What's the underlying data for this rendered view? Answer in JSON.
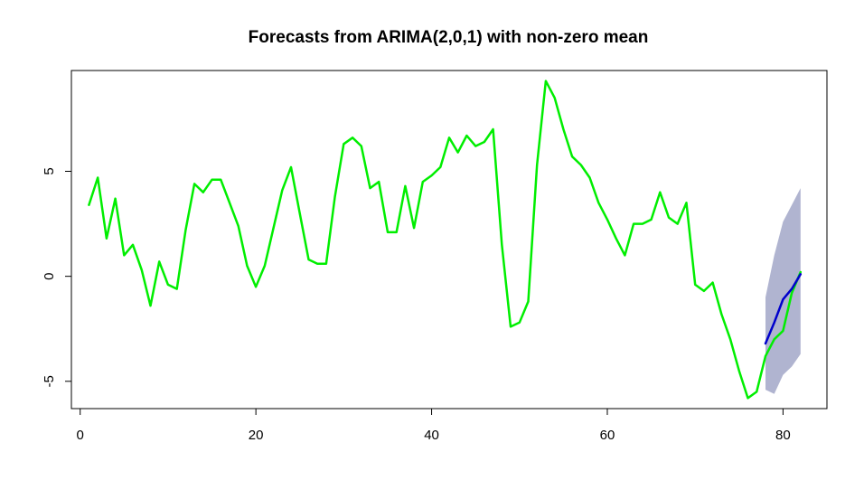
{
  "chart_data": {
    "type": "line",
    "title": "Forecasts from ARIMA(2,0,1) with non-zero mean",
    "xlabel": "",
    "ylabel": "",
    "xlim": [
      -1,
      85
    ],
    "ylim": [
      -6.3,
      9.8
    ],
    "x_ticks": [
      0,
      20,
      40,
      60,
      80
    ],
    "x_tick_labels": [
      "0",
      "20",
      "40",
      "60",
      "80"
    ],
    "y_ticks": [
      -5,
      0,
      5
    ],
    "y_tick_labels": [
      "-5",
      "0",
      "5"
    ],
    "grid": false,
    "legend": "none",
    "series": [
      {
        "role": "observed",
        "color": "#00ee00",
        "points": [
          [
            1,
            3.4
          ],
          [
            2,
            4.7
          ],
          [
            3,
            1.8
          ],
          [
            4,
            3.7
          ],
          [
            5,
            1.0
          ],
          [
            6,
            1.5
          ],
          [
            7,
            0.3
          ],
          [
            8,
            -1.4
          ],
          [
            9,
            0.7
          ],
          [
            10,
            -0.4
          ],
          [
            11,
            -0.6
          ],
          [
            12,
            2.2
          ],
          [
            13,
            4.4
          ],
          [
            14,
            4.0
          ],
          [
            15,
            4.6
          ],
          [
            16,
            4.6
          ],
          [
            17,
            3.5
          ],
          [
            18,
            2.4
          ],
          [
            19,
            0.5
          ],
          [
            20,
            -0.5
          ],
          [
            21,
            0.5
          ],
          [
            22,
            2.3
          ],
          [
            23,
            4.1
          ],
          [
            24,
            5.2
          ],
          [
            25,
            3.0
          ],
          [
            26,
            0.8
          ],
          [
            27,
            0.6
          ],
          [
            28,
            0.6
          ],
          [
            29,
            3.8
          ],
          [
            30,
            6.3
          ],
          [
            31,
            6.6
          ],
          [
            32,
            6.2
          ],
          [
            33,
            4.2
          ],
          [
            34,
            4.5
          ],
          [
            35,
            2.1
          ],
          [
            36,
            2.1
          ],
          [
            37,
            4.3
          ],
          [
            38,
            2.3
          ],
          [
            39,
            4.5
          ],
          [
            40,
            4.8
          ],
          [
            41,
            5.2
          ],
          [
            42,
            6.6
          ],
          [
            43,
            5.9
          ],
          [
            44,
            6.7
          ],
          [
            45,
            6.2
          ],
          [
            46,
            6.4
          ],
          [
            47,
            7.0
          ],
          [
            48,
            1.5
          ],
          [
            49,
            -2.4
          ],
          [
            50,
            -2.2
          ],
          [
            51,
            -1.2
          ],
          [
            52,
            5.3
          ],
          [
            53,
            9.3
          ],
          [
            54,
            8.5
          ],
          [
            55,
            7.0
          ],
          [
            56,
            5.7
          ],
          [
            57,
            5.3
          ],
          [
            58,
            4.7
          ],
          [
            59,
            3.5
          ],
          [
            60,
            2.7
          ],
          [
            61,
            1.8
          ],
          [
            62,
            1.0
          ],
          [
            63,
            2.5
          ],
          [
            64,
            2.5
          ],
          [
            65,
            2.7
          ],
          [
            66,
            4.0
          ],
          [
            67,
            2.8
          ],
          [
            68,
            2.5
          ],
          [
            69,
            3.5
          ],
          [
            70,
            -0.4
          ],
          [
            71,
            -0.7
          ],
          [
            72,
            -0.3
          ],
          [
            73,
            -1.8
          ],
          [
            74,
            -3.0
          ],
          [
            75,
            -4.5
          ],
          [
            76,
            -5.8
          ],
          [
            77,
            -5.5
          ],
          [
            78,
            -3.8
          ],
          [
            79,
            -3.0
          ],
          [
            80,
            -2.6
          ],
          [
            81,
            -0.8
          ],
          [
            82,
            0.2
          ]
        ]
      },
      {
        "role": "forecast",
        "color": "#0000cc",
        "points": [
          [
            78,
            -3.2
          ],
          [
            79,
            -2.2
          ],
          [
            80,
            -1.1
          ],
          [
            81,
            -0.6
          ],
          [
            82,
            0.1
          ]
        ]
      }
    ],
    "intervals": [
      {
        "role": "forecast-band",
        "color": "#b0b4d0",
        "x": [
          78,
          79,
          80,
          81,
          82
        ],
        "lower": [
          -5.4,
          -5.6,
          -4.7,
          -4.3,
          -3.7
        ],
        "upper": [
          -1.0,
          1.0,
          2.6,
          3.4,
          4.2
        ]
      }
    ]
  }
}
